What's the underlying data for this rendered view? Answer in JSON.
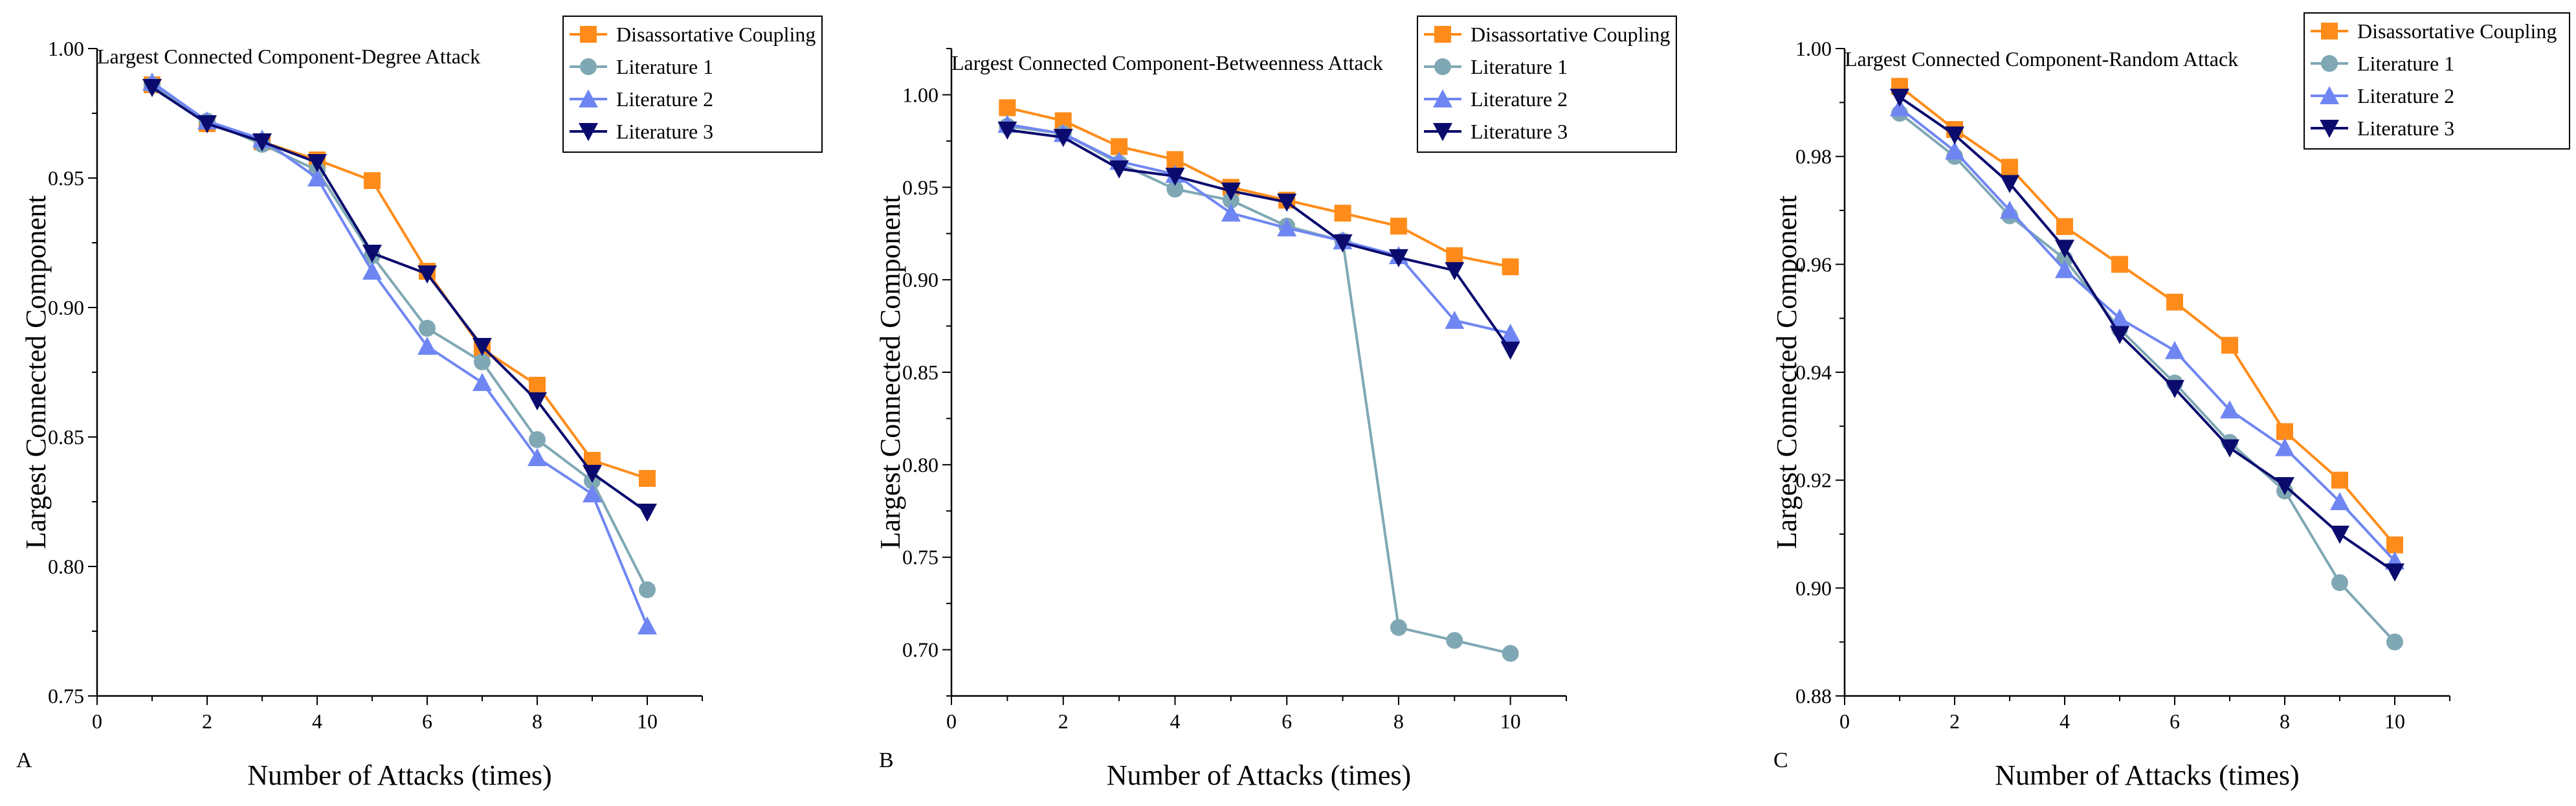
{
  "legend_labels": [
    "Disassortative Coupling",
    "Literature 1",
    "Literature 2",
    "Literature 3"
  ],
  "series_colors": {
    "Disassortative Coupling": "#ff8c1a",
    "Literature 1": "#7fa8b4",
    "Literature 2": "#6f86f2",
    "Literature 3": "#0b0b6e"
  },
  "chart_data": [
    {
      "type": "line",
      "panel": "A",
      "title": "Largest Connected Component-Degree Attack",
      "xlabel": "Number of Attacks (times)",
      "ylabel": "Largest Connected Component",
      "xlim": [
        0,
        11
      ],
      "ylim": [
        0.75,
        1.0
      ],
      "xticks": [
        "0",
        "2",
        "4",
        "6",
        "8",
        "10"
      ],
      "yticks": [
        "0.75",
        "0.80",
        "0.85",
        "0.90",
        "0.95",
        "1.00"
      ],
      "x": [
        1,
        2,
        3,
        4,
        5,
        6,
        7,
        8,
        9,
        10
      ],
      "series": [
        {
          "name": "Disassortative Coupling",
          "values": [
            0.986,
            0.971,
            0.964,
            0.957,
            0.949,
            0.914,
            0.884,
            0.87,
            0.841,
            0.834
          ]
        },
        {
          "name": "Literature 1",
          "values": [
            0.986,
            0.972,
            0.963,
            0.953,
            0.92,
            0.892,
            0.879,
            0.849,
            0.833,
            0.791
          ]
        },
        {
          "name": "Literature 2",
          "values": [
            0.987,
            0.972,
            0.965,
            0.95,
            0.914,
            0.885,
            0.871,
            0.842,
            0.828,
            0.777
          ]
        },
        {
          "name": "Literature 3",
          "values": [
            0.985,
            0.971,
            0.964,
            0.956,
            0.921,
            0.913,
            0.885,
            0.864,
            0.836,
            0.821
          ]
        }
      ]
    },
    {
      "type": "line",
      "panel": "B",
      "title": "Largest Connected Component-Betweenness Attack",
      "xlabel": "Number of Attacks (times)",
      "ylabel": "Largest Connected Component",
      "xlim": [
        0,
        11
      ],
      "ylim": [
        0.675,
        1.025
      ],
      "xticks": [
        "0",
        "2",
        "4",
        "6",
        "8",
        "10"
      ],
      "yticks": [
        "0.70",
        "0.75",
        "0.80",
        "0.85",
        "0.90",
        "0.95",
        "1.00"
      ],
      "x": [
        1,
        2,
        3,
        4,
        5,
        6,
        7,
        8,
        9,
        10
      ],
      "series": [
        {
          "name": "Disassortative Coupling",
          "values": [
            0.993,
            0.986,
            0.972,
            0.965,
            0.95,
            0.943,
            0.936,
            0.929,
            0.913,
            0.907
          ]
        },
        {
          "name": "Literature 1",
          "values": [
            0.983,
            0.979,
            0.963,
            0.949,
            0.943,
            0.929,
            0.921,
            0.712,
            0.705,
            0.698
          ]
        },
        {
          "name": "Literature 2",
          "values": [
            0.984,
            0.979,
            0.964,
            0.957,
            0.936,
            0.928,
            0.921,
            0.913,
            0.878,
            0.871
          ]
        },
        {
          "name": "Literature 3",
          "values": [
            0.981,
            0.977,
            0.96,
            0.956,
            0.948,
            0.942,
            0.92,
            0.912,
            0.905,
            0.862
          ]
        }
      ]
    },
    {
      "type": "line",
      "panel": "C",
      "title": "Largest Connected Component-Random Attack",
      "xlabel": "Number of Attacks (times)",
      "ylabel": "Largest Connected Component",
      "xlim": [
        0,
        11
      ],
      "ylim": [
        0.88,
        1.0
      ],
      "xticks": [
        "0",
        "2",
        "4",
        "6",
        "8",
        "10"
      ],
      "yticks": [
        "0.88",
        "0.90",
        "0.92",
        "0.94",
        "0.96",
        "0.98",
        "1.00"
      ],
      "x": [
        1,
        2,
        3,
        4,
        5,
        6,
        7,
        8,
        9,
        10
      ],
      "series": [
        {
          "name": "Disassortative Coupling",
          "values": [
            0.993,
            0.985,
            0.978,
            0.967,
            0.96,
            0.953,
            0.945,
            0.929,
            0.92,
            0.908
          ]
        },
        {
          "name": "Literature 1",
          "values": [
            0.988,
            0.98,
            0.969,
            0.961,
            0.948,
            0.938,
            0.927,
            0.918,
            0.901,
            0.89
          ]
        },
        {
          "name": "Literature 2",
          "values": [
            0.989,
            0.981,
            0.97,
            0.959,
            0.95,
            0.944,
            0.933,
            0.926,
            0.916,
            0.905
          ]
        },
        {
          "name": "Literature 3",
          "values": [
            0.991,
            0.984,
            0.975,
            0.963,
            0.947,
            0.937,
            0.926,
            0.919,
            0.91,
            0.903
          ]
        }
      ]
    }
  ]
}
